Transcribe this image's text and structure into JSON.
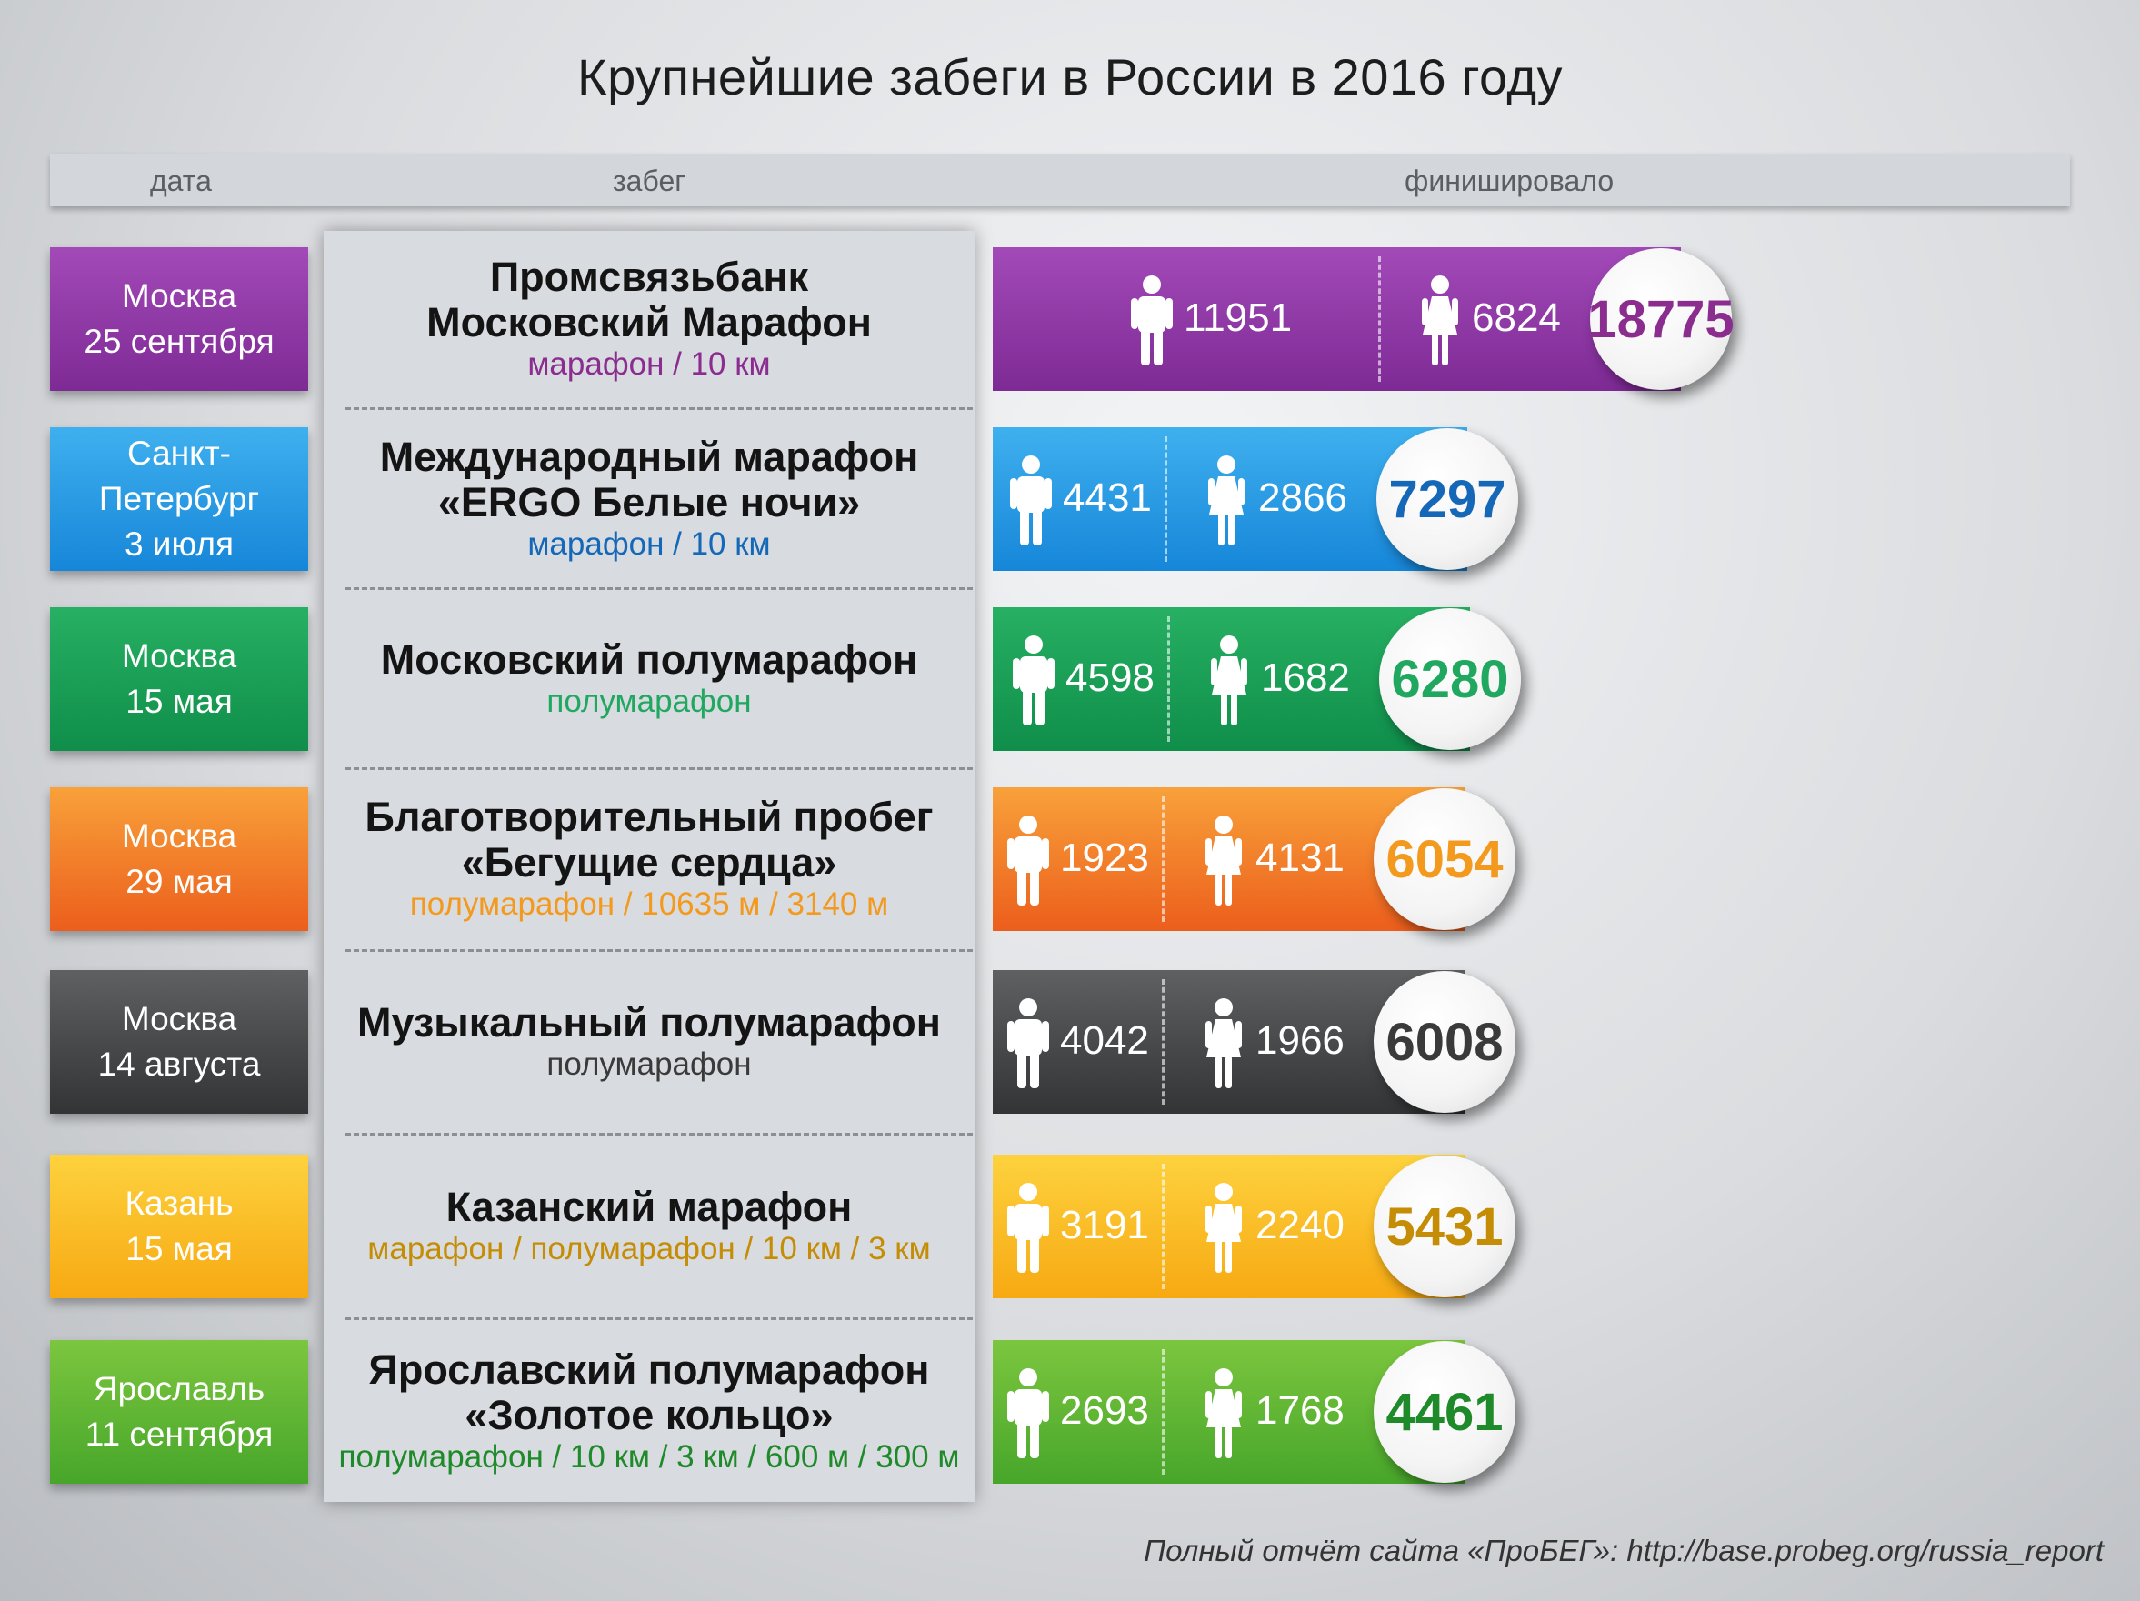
{
  "title": "Крупнейшие забеги в России в 2016 году",
  "headers": {
    "date": "дата",
    "race": "забег",
    "finished": "финишировало"
  },
  "footer": "Полный отчёт сайта «ПроБЕГ»: http://base.probeg.org/russia_report",
  "legend_icons": {
    "men": "male-person-icon",
    "women": "female-person-icon"
  },
  "chart_data": {
    "type": "bar",
    "stacked": true,
    "categories": [
      "Промсвязьбанк Московский Марафон",
      "Международный марафон «ERGO Белые ночи»",
      "Московский полумарафон",
      "Благотворительный пробег «Бегущие сердца»",
      "Музыкальный полумарафон",
      "Казанский марафон",
      "Ярославский полумарафон «Золотое кольцо»"
    ],
    "series": [
      {
        "values": [
          11951,
          4431,
          4598,
          1923,
          4042,
          3191,
          2693
        ]
      },
      {
        "values": [
          6824,
          2866,
          1682,
          4131,
          1966,
          2240,
          1768
        ]
      }
    ],
    "totals": [
      18775,
      7297,
      6280,
      6054,
      6008,
      5431,
      4461
    ],
    "title": "Крупнейшие забеги в России в 2016 году",
    "xlabel": "финишировало"
  },
  "races": [
    {
      "city": "Москва",
      "date": "25 сентября",
      "name_lines": [
        "Промсвязьбанк",
        "Московский Марафон"
      ],
      "distances": "марафон / 10 км",
      "men": "11951",
      "women": "6824",
      "total": "18775",
      "color": "#7e2a95",
      "color_light": "#a24ab8",
      "accent": "#8b2c8f"
    },
    {
      "city": "Санкт-Петербург",
      "date": "3 июля",
      "name_lines": [
        "Международный марафон",
        "«ERGO Белые ночи»"
      ],
      "distances": "марафон / 10 км",
      "men": "4431",
      "women": "2866",
      "total": "7297",
      "color": "#1686d9",
      "color_light": "#3fb0ee",
      "accent": "#1568b8"
    },
    {
      "city": "Москва",
      "date": "15 мая",
      "name_lines": [
        "Московский полумарафон"
      ],
      "distances": "полумарафон",
      "men": "4598",
      "women": "1682",
      "total": "6280",
      "color": "#0f8e4a",
      "color_light": "#27b063",
      "accent": "#20a860"
    },
    {
      "city": "Москва",
      "date": "29 мая",
      "name_lines": [
        "Благотворительный пробег",
        "«Бегущие сердца»"
      ],
      "distances": "полумарафон / 10635 м / 3140 м",
      "men": "1923",
      "women": "4131",
      "total": "6054",
      "color": "#ec5e1c",
      "color_light": "#f8a13a",
      "accent": "#f39a1e"
    },
    {
      "city": "Москва",
      "date": "14 августа",
      "name_lines": [
        "Музыкальный полумарафон"
      ],
      "distances": "полумарафон",
      "men": "4042",
      "women": "1966",
      "total": "6008",
      "color": "#333435",
      "color_light": "#5f6061",
      "accent": "#3a3a3a"
    },
    {
      "city": "Казань",
      "date": "15 мая",
      "name_lines": [
        "Казанский марафон"
      ],
      "distances": "марафон / полумарафон / 10 км / 3 км",
      "men": "3191",
      "women": "2240",
      "total": "5431",
      "color": "#f7a912",
      "color_light": "#fdd23e",
      "accent": "#c58d06"
    },
    {
      "city": "Ярославль",
      "date": "11 сентября",
      "name_lines": [
        "Ярославский полумарафон",
        "«Золотое кольцо»"
      ],
      "distances": "полумарафон / 10 км / 3 км / 600 м / 300 м",
      "men": "2693",
      "women": "1768",
      "total": "4461",
      "color": "#47a62a",
      "color_light": "#7cc63f",
      "accent": "#1f8a2a"
    }
  ]
}
